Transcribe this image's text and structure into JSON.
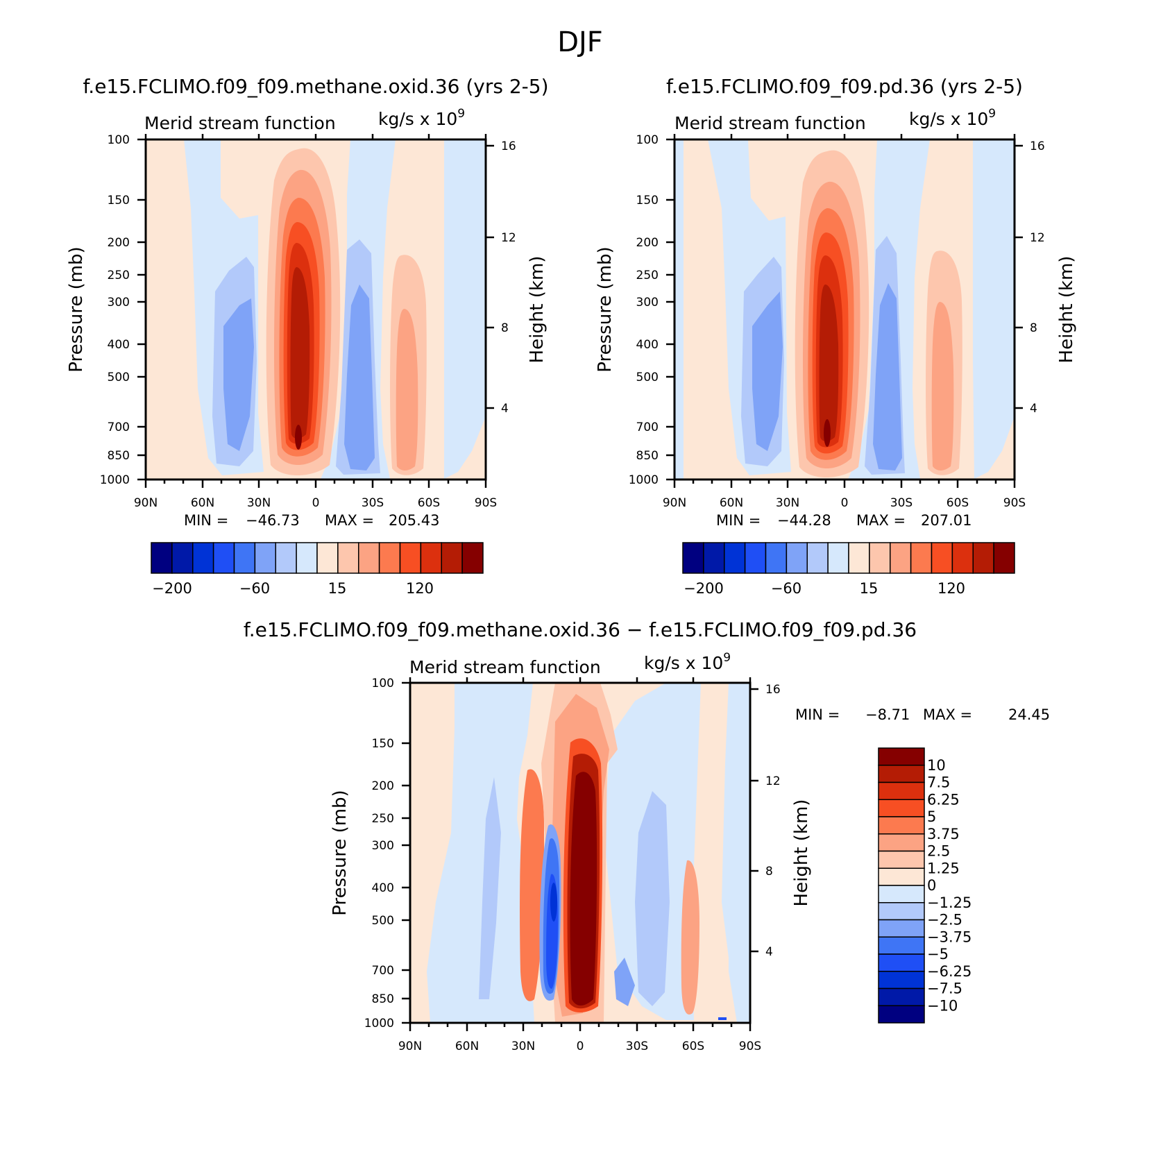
{
  "figure": {
    "title": "DJF"
  },
  "colors": {
    "blue_scale": [
      "#000080",
      "#0019a8",
      "#0033d6",
      "#1f4ff5",
      "#3f75f5",
      "#7fa3f7",
      "#b2c9fa",
      "#d6e8fc"
    ],
    "red_scale": [
      "#fde7d6",
      "#fdc6ad",
      "#fca383",
      "#fc7a4f",
      "#f74f23",
      "#dc300e",
      "#b41c05",
      "#850000"
    ]
  },
  "chart_data": [
    {
      "type": "contour",
      "id": "panel-methane",
      "title": "f.e15.FCLIMO.f09_f09.methane.oxid.36 (yrs 2-5)",
      "subtitle": "Merid stream function",
      "units": "kg/s x 10",
      "units_exp": "9",
      "xlabel": "",
      "ylabel": "Pressure (mb)",
      "y2label": "Height (km)",
      "x_ticks": [
        "90N",
        "60N",
        "30N",
        "0",
        "30S",
        "60S",
        "90S"
      ],
      "y_ticks": [
        "100",
        "150",
        "200",
        "250",
        "300",
        "400",
        "500",
        "700",
        "850",
        "1000"
      ],
      "y2_ticks": [
        "16",
        "12",
        "8",
        "4"
      ],
      "xlim": [
        90,
        -90
      ],
      "ylim": [
        1000,
        100
      ],
      "min_label": "MIN =",
      "min_value": "−46.73",
      "max_label": "MAX =",
      "max_value": "205.43",
      "colorbar": {
        "orientation": "horizontal",
        "levels": [
          -200,
          -150,
          -100,
          -60,
          -40,
          -20,
          -5,
          0,
          5,
          15,
          40,
          80,
          120,
          150,
          200
        ],
        "labels": [
          "−200",
          "−60",
          "15",
          "120"
        ]
      }
    },
    {
      "type": "contour",
      "id": "panel-pd",
      "title": "f.e15.FCLIMO.f09_f09.pd.36 (yrs 2-5)",
      "subtitle": "Merid stream function",
      "units": "kg/s x 10",
      "units_exp": "9",
      "xlabel": "",
      "ylabel": "Pressure (mb)",
      "y2label": "Height (km)",
      "x_ticks": [
        "90N",
        "60N",
        "30N",
        "0",
        "30S",
        "60S",
        "90S"
      ],
      "y_ticks": [
        "100",
        "150",
        "200",
        "250",
        "300",
        "400",
        "500",
        "700",
        "850",
        "1000"
      ],
      "y2_ticks": [
        "16",
        "12",
        "8",
        "4"
      ],
      "xlim": [
        90,
        -90
      ],
      "ylim": [
        1000,
        100
      ],
      "min_label": "MIN =",
      "min_value": "−44.28",
      "max_label": "MAX =",
      "max_value": "207.01",
      "colorbar": {
        "orientation": "horizontal",
        "levels": [
          -200,
          -150,
          -100,
          -60,
          -40,
          -20,
          -5,
          0,
          5,
          15,
          40,
          80,
          120,
          150,
          200
        ],
        "labels": [
          "−200",
          "−60",
          "15",
          "120"
        ]
      }
    },
    {
      "type": "contour",
      "id": "panel-diff",
      "title": "f.e15.FCLIMO.f09_f09.methane.oxid.36 − f.e15.FCLIMO.f09_f09.pd.36",
      "subtitle": "Merid stream function",
      "units": "kg/s x 10",
      "units_exp": "9",
      "xlabel": "",
      "ylabel": "Pressure (mb)",
      "y2label": "Height (km)",
      "x_ticks": [
        "90N",
        "60N",
        "30N",
        "0",
        "30S",
        "60S",
        "90S"
      ],
      "y_ticks": [
        "100",
        "150",
        "200",
        "250",
        "300",
        "400",
        "500",
        "700",
        "850",
        "1000"
      ],
      "y2_ticks": [
        "16",
        "12",
        "8",
        "4"
      ],
      "xlim": [
        90,
        -90
      ],
      "ylim": [
        1000,
        100
      ],
      "min_label": "MIN =",
      "min_value": "−8.71",
      "max_label": "MAX =",
      "max_value": "24.45",
      "colorbar": {
        "orientation": "vertical",
        "levels": [
          -10,
          -7.5,
          -6.25,
          -5,
          -3.75,
          -2.5,
          -1.25,
          0,
          1.25,
          2.5,
          3.75,
          5,
          6.25,
          7.5,
          10
        ],
        "labels": [
          "10",
          "7.5",
          "6.25",
          "5",
          "3.75",
          "2.5",
          "1.25",
          "0",
          "−1.25",
          "−2.5",
          "−3.75",
          "−5",
          "−6.25",
          "−7.5",
          "−10"
        ]
      }
    }
  ]
}
